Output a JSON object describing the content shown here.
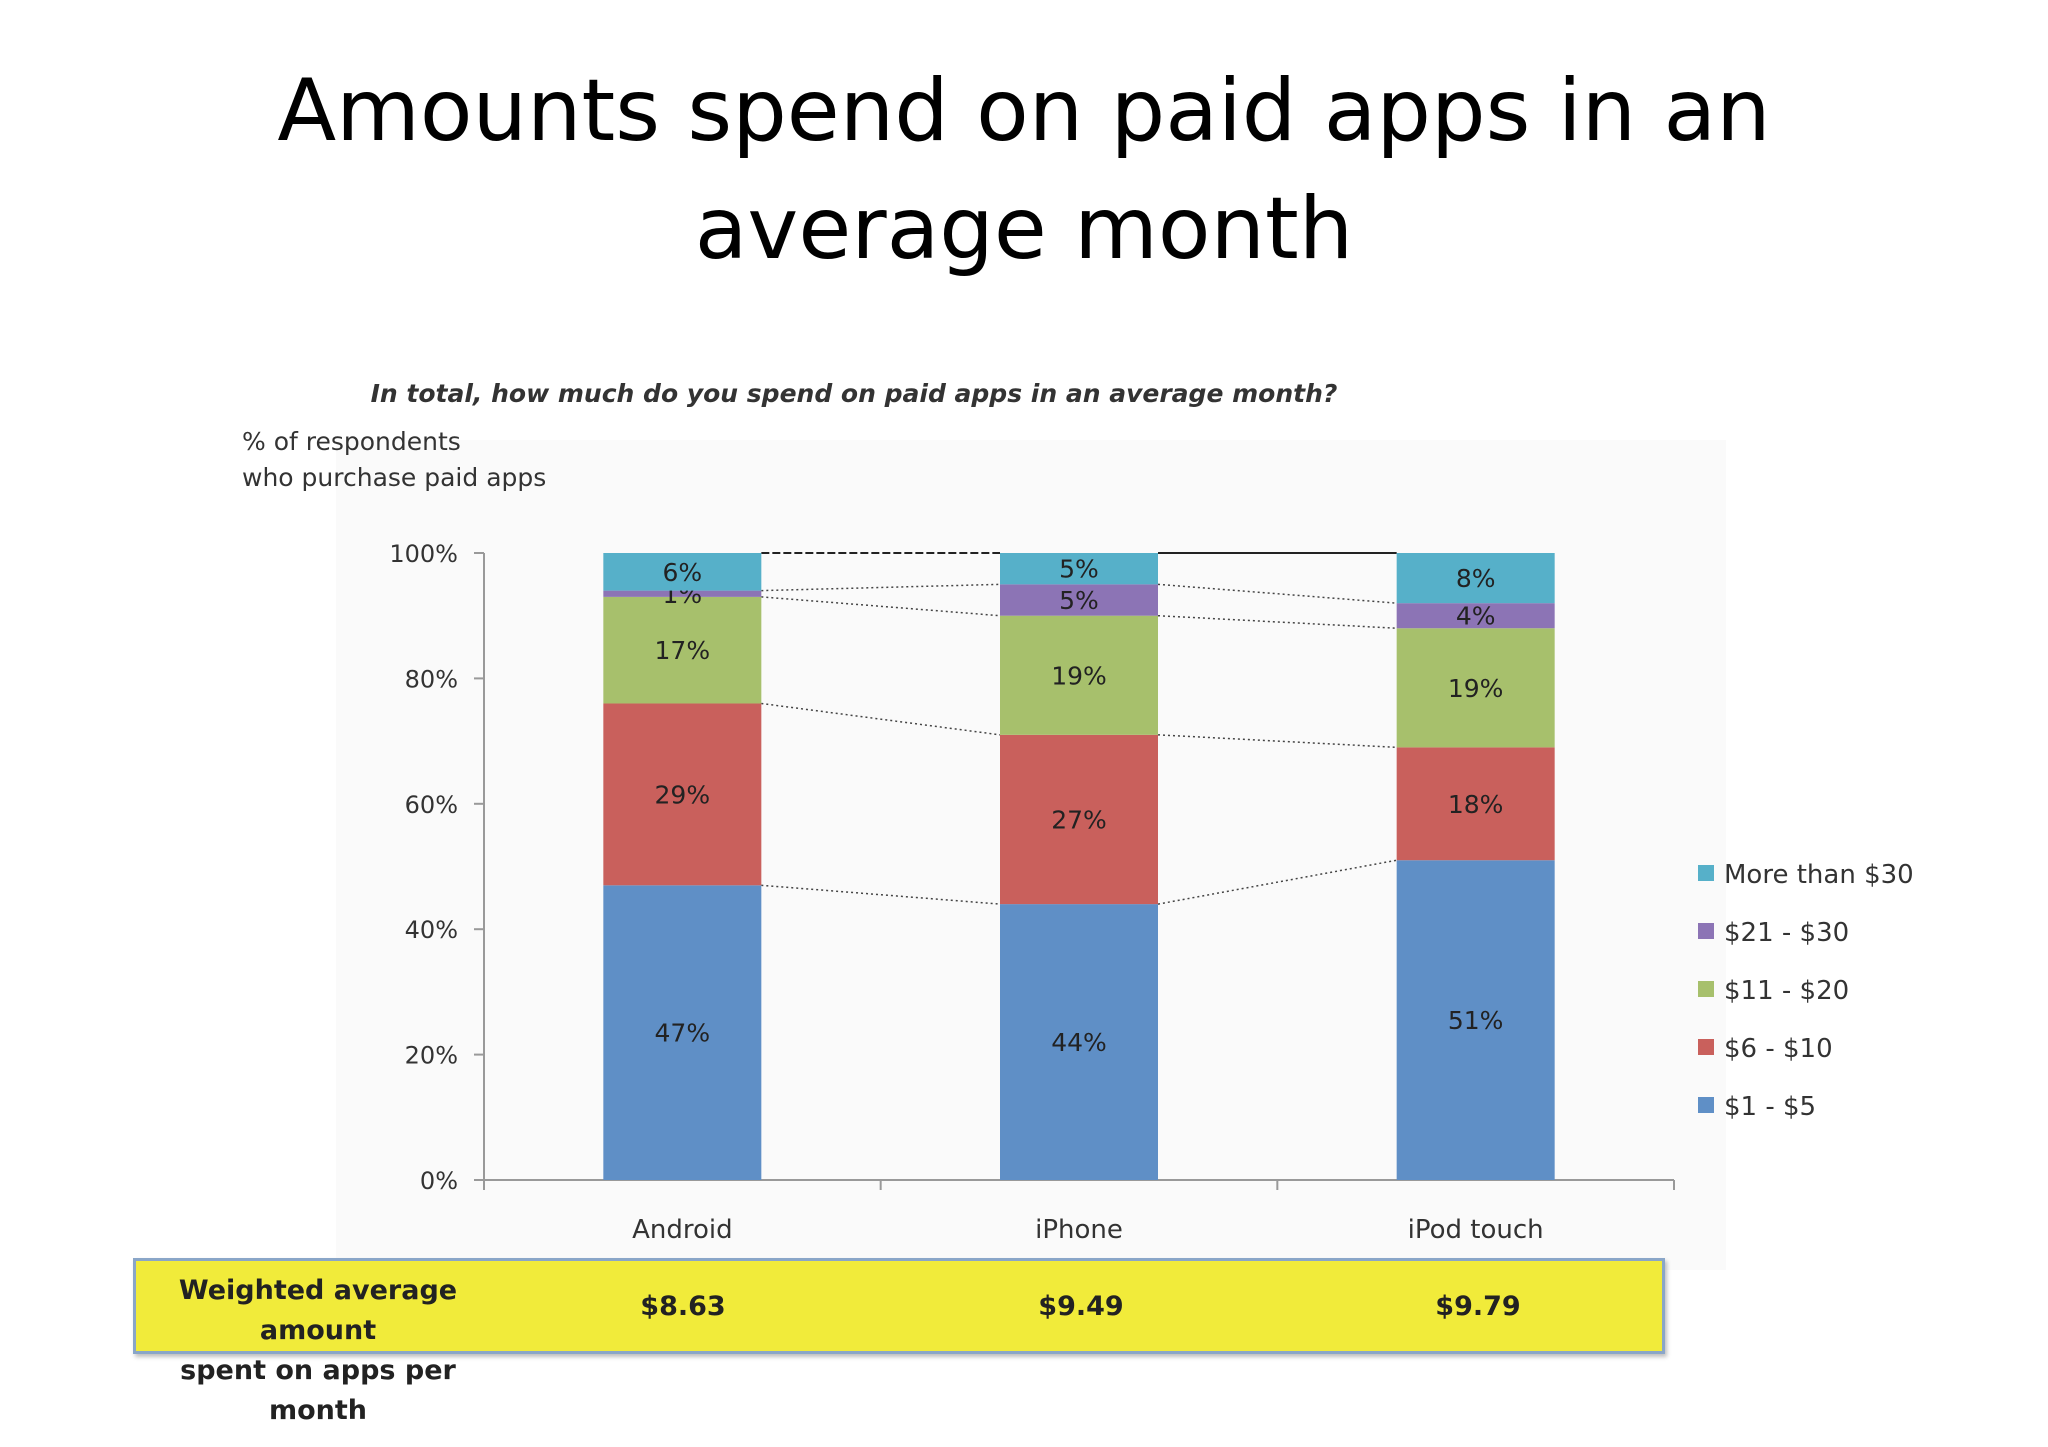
{
  "slide": {
    "title": "Amounts spend on paid apps in an average month"
  },
  "chart_data": {
    "type": "bar",
    "stacked": true,
    "title": "In total, how much do you spend on paid apps in an average month?",
    "ylabel": "% of respondents who purchase paid apps",
    "xlabel": "",
    "ylim": [
      0,
      100
    ],
    "yticks": [
      "0%",
      "20%",
      "40%",
      "60%",
      "80%",
      "100%"
    ],
    "categories": [
      "Android",
      "iPhone",
      "iPod touch"
    ],
    "series": [
      {
        "name": "$1 - $5",
        "values": [
          47,
          44,
          51
        ],
        "labels": [
          "47%",
          "44%",
          "51%"
        ],
        "color": "#5f8fc6"
      },
      {
        "name": "$6 - $10",
        "values": [
          29,
          27,
          18
        ],
        "labels": [
          "29%",
          "27%",
          "18%"
        ],
        "color": "#c9605c"
      },
      {
        "name": "$11 - $20",
        "values": [
          17,
          19,
          19
        ],
        "labels": [
          "17%",
          "19%",
          "19%"
        ],
        "color": "#a7c06c"
      },
      {
        "name": "$21 - $30",
        "values": [
          1,
          5,
          4
        ],
        "labels": [
          "1%",
          "5%",
          "4%"
        ],
        "color": "#8c74b5"
      },
      {
        "name": "More than $30",
        "values": [
          6,
          5,
          8
        ],
        "labels": [
          "6%",
          "5%",
          "8%"
        ],
        "color": "#56b0c9"
      }
    ],
    "legend_position": "right",
    "grid": false
  },
  "average_row": {
    "label": "Weighted average amount\nspent on apps per month",
    "values": [
      "$8.63",
      "$9.49",
      "$9.79"
    ]
  }
}
